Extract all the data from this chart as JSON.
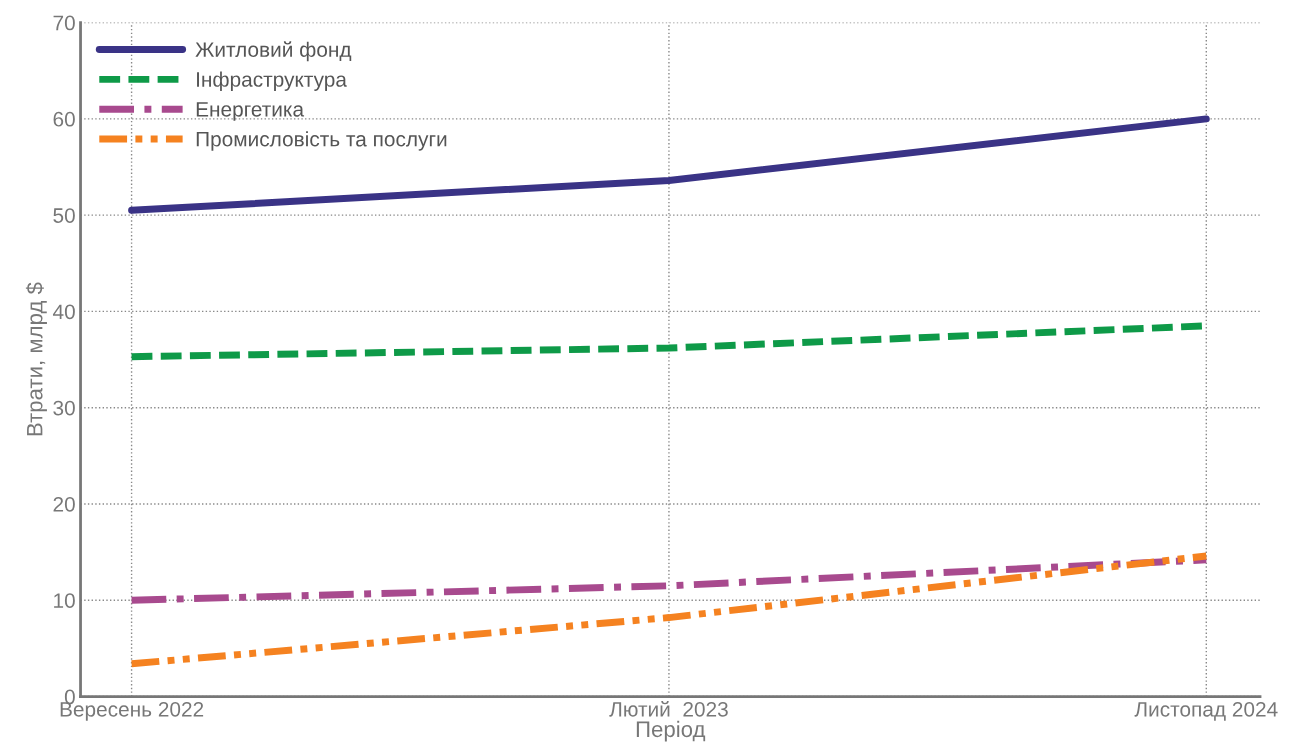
{
  "chart_data": {
    "type": "line",
    "xlabel": "Період",
    "ylabel": "Втрати, млрд $",
    "categories": [
      "Вересень 2022",
      "Лютий  2023",
      "Листопад 2024"
    ],
    "series": [
      {
        "name": "Житловий фонд",
        "color": "#3a3386",
        "line_style": "solid",
        "values": [
          50.5,
          53.6,
          60
        ]
      },
      {
        "name": "Інфраструктура",
        "color": "#0e9a48",
        "line_style": "dashed",
        "values": [
          35.3,
          36.2,
          38.5
        ]
      },
      {
        "name": "Енергетика",
        "color": "#a84a8e",
        "line_style": "dashdot",
        "values": [
          10,
          11.5,
          14.2
        ]
      },
      {
        "name": "Промисловість та послуги",
        "color": "#f58220",
        "line_style": "dashdotdot",
        "values": [
          3.4,
          8.2,
          14.6
        ]
      }
    ],
    "ylim": [
      0,
      70
    ],
    "yticks": [
      0,
      10,
      20,
      30,
      40,
      50,
      60,
      70
    ],
    "grid": true,
    "legend": "top left",
    "marker": "none"
  }
}
